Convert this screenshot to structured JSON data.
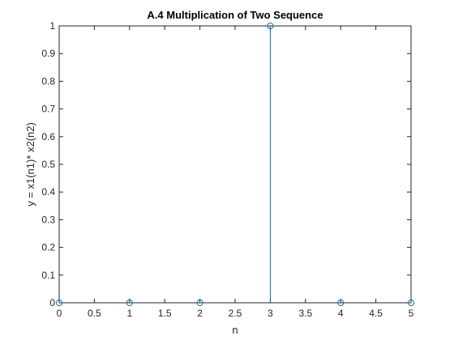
{
  "chart_data": {
    "type": "stem",
    "title": "A.4 Multiplication of Two Sequence",
    "xlabel": "n",
    "ylabel": "y = x1(n1)* x2(n2)",
    "xlim": [
      0,
      5
    ],
    "ylim": [
      0,
      1
    ],
    "xticks": [
      "0",
      "0.5",
      "1",
      "1.5",
      "2",
      "2.5",
      "3",
      "3.5",
      "4",
      "4.5",
      "5"
    ],
    "yticks": [
      "0",
      "0.1",
      "0.2",
      "0.3",
      "0.4",
      "0.5",
      "0.6",
      "0.7",
      "0.8",
      "0.9",
      "1"
    ],
    "x": [
      0,
      1,
      2,
      3,
      4,
      5
    ],
    "y": [
      0,
      0,
      0,
      1,
      0,
      0
    ],
    "marker": "circle-open",
    "grid": false,
    "box": true,
    "colors": {
      "series": "#0072BD",
      "axes": "#262626",
      "background": "#ffffff"
    }
  }
}
